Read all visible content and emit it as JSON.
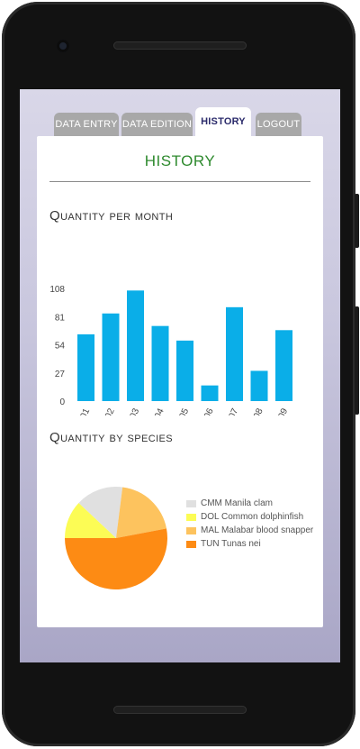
{
  "tabs": [
    {
      "label": "DATA ENTRY",
      "active": false
    },
    {
      "label": "DATA EDITION",
      "active": false
    },
    {
      "label": "HISTORY",
      "active": true
    },
    {
      "label": "LOGOUT",
      "active": false
    }
  ],
  "page": {
    "title": "HISTORY"
  },
  "sections": {
    "per_month": "Quantity per month",
    "by_species": "Quantity by species"
  },
  "chart_data": [
    {
      "type": "bar",
      "title": "Quantity per month",
      "categories": [
        "2018-01",
        "2018-02",
        "2018-03",
        "2018-04",
        "2018-05",
        "2018-06",
        "2018-07",
        "2018-08",
        "2018-09"
      ],
      "values": [
        64,
        84,
        106,
        72,
        58,
        15,
        90,
        29,
        68
      ],
      "yticks": [
        0,
        27,
        54,
        81,
        108
      ],
      "ylim": [
        0,
        108
      ],
      "color": "#0aaee8",
      "grid": false
    },
    {
      "type": "pie",
      "title": "Quantity by species",
      "labels": [
        "CMM Manila clam",
        "DOL Common dolphinfish",
        "MAL Malabar blood snapper",
        "TUN Tunas nei"
      ],
      "values": [
        15,
        12,
        20,
        53
      ],
      "colors": [
        "#e0e0e0",
        "#fcfc55",
        "#fdc35e",
        "#fd8b14"
      ],
      "legend_position": "right"
    }
  ]
}
